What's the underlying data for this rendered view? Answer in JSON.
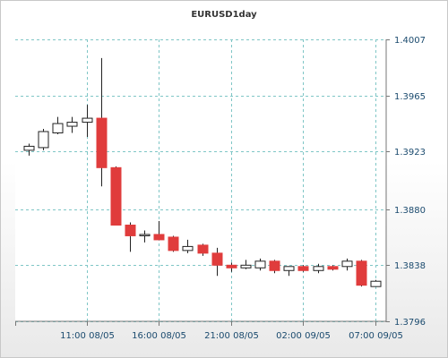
{
  "chart_data": {
    "type": "candlestick",
    "title": "EURUSD1day",
    "y_ticks": [
      "1.4007",
      "1.3965",
      "1.3923",
      "1.3880",
      "1.3838",
      "1.3796"
    ],
    "ylim": [
      1.3796,
      1.4007
    ],
    "x_ticks": [
      {
        "label": "11:00 08/05",
        "index": 4
      },
      {
        "label": "16:00 08/05",
        "index": 9
      },
      {
        "label": "21:00 08/05",
        "index": 14
      },
      {
        "label": "02:00 09/05",
        "index": 19
      },
      {
        "label": "07:00 09/05",
        "index": 24
      }
    ],
    "grid": true,
    "bullish_color": "#ffffff",
    "bearish_color": "#e03c3c",
    "candles": [
      {
        "open": 1.3924,
        "high": 1.3929,
        "low": 1.392,
        "close": 1.3927
      },
      {
        "open": 1.3926,
        "high": 1.394,
        "low": 1.3924,
        "close": 1.3938
      },
      {
        "open": 1.3937,
        "high": 1.3949,
        "low": 1.3936,
        "close": 1.3944
      },
      {
        "open": 1.3942,
        "high": 1.3949,
        "low": 1.3937,
        "close": 1.3945
      },
      {
        "open": 1.3945,
        "high": 1.3958,
        "low": 1.3934,
        "close": 1.3948
      },
      {
        "open": 1.3948,
        "high": 1.3993,
        "low": 1.3897,
        "close": 1.3911
      },
      {
        "open": 1.3911,
        "high": 1.3912,
        "low": 1.3868,
        "close": 1.3868
      },
      {
        "open": 1.3868,
        "high": 1.387,
        "low": 1.3848,
        "close": 1.386
      },
      {
        "open": 1.386,
        "high": 1.3864,
        "low": 1.3855,
        "close": 1.3861
      },
      {
        "open": 1.3861,
        "high": 1.3871,
        "low": 1.3857,
        "close": 1.3857
      },
      {
        "open": 1.3859,
        "high": 1.386,
        "low": 1.3848,
        "close": 1.3849
      },
      {
        "open": 1.3849,
        "high": 1.3857,
        "low": 1.3847,
        "close": 1.3852
      },
      {
        "open": 1.3853,
        "high": 1.3854,
        "low": 1.3845,
        "close": 1.3847
      },
      {
        "open": 1.3847,
        "high": 1.3851,
        "low": 1.383,
        "close": 1.3838
      },
      {
        "open": 1.3838,
        "high": 1.384,
        "low": 1.3833,
        "close": 1.3836
      },
      {
        "open": 1.3836,
        "high": 1.3842,
        "low": 1.3835,
        "close": 1.3838
      },
      {
        "open": 1.3836,
        "high": 1.3843,
        "low": 1.3834,
        "close": 1.3841
      },
      {
        "open": 1.3841,
        "high": 1.3842,
        "low": 1.3832,
        "close": 1.3834
      },
      {
        "open": 1.3834,
        "high": 1.3837,
        "low": 1.383,
        "close": 1.3837
      },
      {
        "open": 1.3837,
        "high": 1.3838,
        "low": 1.3833,
        "close": 1.3834
      },
      {
        "open": 1.3834,
        "high": 1.3839,
        "low": 1.3832,
        "close": 1.3837
      },
      {
        "open": 1.3837,
        "high": 1.3838,
        "low": 1.3834,
        "close": 1.3835
      },
      {
        "open": 1.3837,
        "high": 1.3843,
        "low": 1.3834,
        "close": 1.3841
      },
      {
        "open": 1.3841,
        "high": 1.3842,
        "low": 1.3822,
        "close": 1.3823
      },
      {
        "open": 1.3822,
        "high": 1.3827,
        "low": 1.3822,
        "close": 1.3826
      }
    ]
  }
}
